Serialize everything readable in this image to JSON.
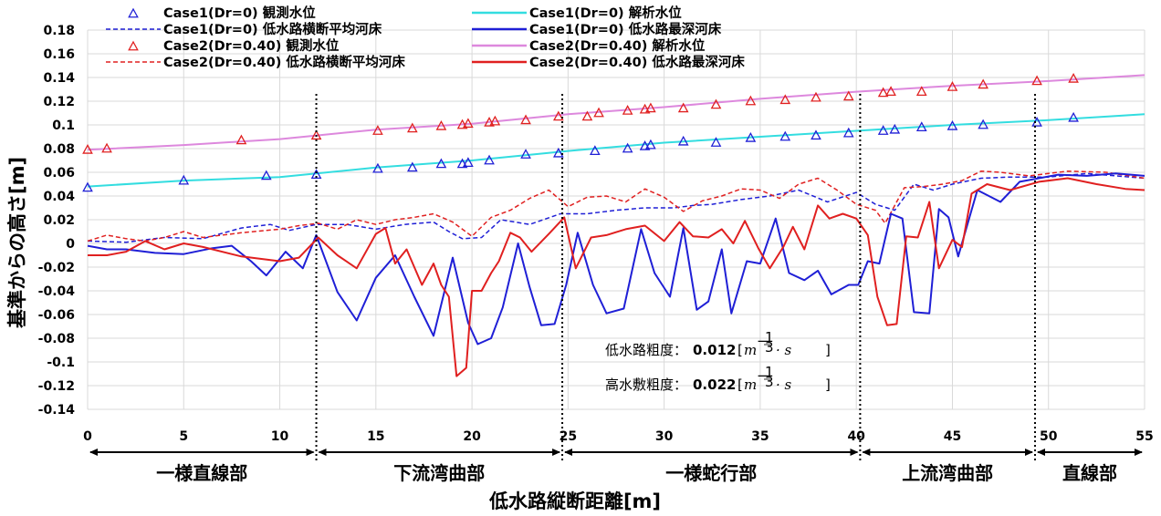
{
  "chart_data": {
    "type": "line",
    "title": "",
    "xlabel": "低水路縦断距離[m]",
    "ylabel": "基準からの高さ[m]",
    "xlim": [
      0,
      55
    ],
    "ylim": [
      -0.14,
      0.18
    ],
    "x_ticks": [
      0,
      5,
      10,
      15,
      20,
      25,
      30,
      35,
      40,
      45,
      50,
      55
    ],
    "y_ticks": [
      -0.14,
      -0.12,
      -0.1,
      -0.08,
      -0.06,
      -0.04,
      -0.02,
      0,
      0.02,
      0.04,
      0.06,
      0.08,
      0.1,
      0.12,
      0.14,
      0.16,
      0.18
    ],
    "grid": true,
    "legend_position": "top",
    "series": [
      {
        "name": "Case1(Dr=0) 観測水位",
        "style": "marker",
        "color": "#1f1fd6",
        "x": [
          0,
          5,
          9.3,
          11.9,
          15.1,
          16.9,
          18.4,
          19.5,
          19.8,
          20.9,
          22.8,
          24.5,
          26.4,
          28.1,
          29.0,
          29.3,
          31.0,
          32.7,
          34.5,
          36.3,
          37.9,
          39.6,
          41.4,
          42.0,
          43.4,
          45.0,
          46.6,
          49.4,
          51.3
        ],
        "y": [
          0.047,
          0.053,
          0.057,
          0.058,
          0.063,
          0.064,
          0.067,
          0.067,
          0.068,
          0.07,
          0.075,
          0.076,
          0.078,
          0.08,
          0.082,
          0.083,
          0.086,
          0.085,
          0.089,
          0.09,
          0.091,
          0.093,
          0.095,
          0.096,
          0.098,
          0.099,
          0.1,
          0.102,
          0.106
        ]
      },
      {
        "name": "Case1(Dr=0) 解析水位",
        "style": "solid",
        "color": "#33dde0",
        "x": [
          0,
          5,
          10,
          15,
          20,
          25,
          30,
          35,
          40,
          45,
          50,
          55
        ],
        "y": [
          0.048,
          0.053,
          0.056,
          0.064,
          0.07,
          0.078,
          0.085,
          0.09,
          0.095,
          0.1,
          0.104,
          0.109
        ]
      },
      {
        "name": "Case1(Dr=0) 低水路横断平均河床",
        "style": "dashed",
        "color": "#1f1fd6",
        "x": [
          0,
          2,
          4,
          6,
          8,
          9.5,
          10.5,
          11.9,
          13.5,
          15,
          16.5,
          18,
          18.8,
          19.5,
          20.5,
          21.5,
          23,
          24.6,
          26,
          27.5,
          29,
          30.5,
          31.5,
          32.5,
          34,
          35.5,
          37,
          38.5,
          40,
          41,
          42,
          43,
          44,
          45,
          46.5,
          48,
          50,
          52,
          55
        ],
        "y": [
          0.002,
          0.001,
          0.005,
          0.004,
          0.013,
          0.016,
          0.011,
          0.016,
          0.016,
          0.012,
          0.016,
          0.018,
          0.01,
          0.004,
          0.005,
          0.02,
          0.016,
          0.025,
          0.025,
          0.028,
          0.03,
          0.03,
          0.032,
          0.033,
          0.037,
          0.04,
          0.045,
          0.035,
          0.043,
          0.033,
          0.028,
          0.05,
          0.045,
          0.05,
          0.055,
          0.056,
          0.056,
          0.059,
          0.055
        ]
      },
      {
        "name": "Case1(Dr=0) 低水路最深河床",
        "style": "solid",
        "color": "#1f1fd6",
        "x": [
          0,
          1,
          2,
          3.5,
          5,
          6.5,
          7.5,
          8.5,
          9.3,
          10.3,
          11.2,
          11.9,
          13,
          14,
          15,
          16,
          17,
          18,
          19,
          19.8,
          20.3,
          21,
          21.6,
          22.4,
          23,
          23.6,
          24.3,
          24.9,
          25.5,
          26.3,
          27,
          27.9,
          28.8,
          29.5,
          30.3,
          31,
          31.7,
          32.3,
          33,
          33.5,
          34.3,
          35,
          35.8,
          36.5,
          37.3,
          38,
          38.7,
          39.6,
          40.1,
          40.6,
          41.2,
          41.8,
          42.4,
          43,
          43.8,
          44.3,
          44.8,
          45.3,
          46.3,
          47.5,
          48.5,
          49.5,
          50.5,
          52,
          53.5,
          55
        ],
        "y": [
          -0.002,
          -0.005,
          -0.005,
          -0.008,
          -0.009,
          -0.004,
          -0.002,
          -0.015,
          -0.027,
          -0.007,
          -0.021,
          0.007,
          -0.041,
          -0.065,
          -0.029,
          -0.01,
          -0.045,
          -0.078,
          -0.012,
          -0.067,
          -0.085,
          -0.08,
          -0.054,
          0.0,
          -0.037,
          -0.069,
          -0.068,
          -0.035,
          0.009,
          -0.035,
          -0.059,
          -0.055,
          0.012,
          -0.025,
          -0.045,
          0.013,
          -0.056,
          -0.049,
          -0.005,
          -0.059,
          -0.015,
          -0.017,
          0.021,
          -0.025,
          -0.031,
          -0.023,
          -0.043,
          -0.035,
          -0.035,
          -0.015,
          -0.017,
          0.025,
          0.021,
          -0.058,
          -0.059,
          0.029,
          0.022,
          -0.011,
          0.045,
          0.035,
          0.052,
          0.055,
          0.058,
          0.057,
          0.059,
          0.057
        ]
      },
      {
        "name": "Case2(Dr=0.40) 観測水位",
        "style": "marker",
        "color": "#e02020",
        "x": [
          0,
          1,
          8,
          11.9,
          15.1,
          16.9,
          18.4,
          19.5,
          19.8,
          20.9,
          21.2,
          22.8,
          24.5,
          26.0,
          26.6,
          28.1,
          29.0,
          29.3,
          31.0,
          32.7,
          34.5,
          36.3,
          37.9,
          39.6,
          41.4,
          41.8,
          43.4,
          45.0,
          46.6,
          49.4,
          51.3
        ],
        "y": [
          0.079,
          0.08,
          0.087,
          0.091,
          0.095,
          0.097,
          0.099,
          0.1,
          0.101,
          0.102,
          0.103,
          0.104,
          0.107,
          0.107,
          0.11,
          0.112,
          0.113,
          0.114,
          0.114,
          0.117,
          0.12,
          0.121,
          0.123,
          0.124,
          0.127,
          0.128,
          0.128,
          0.132,
          0.134,
          0.137,
          0.139
        ]
      },
      {
        "name": "Case2(Dr=0.40) 解析水位",
        "style": "solid",
        "color": "#dd88dd",
        "x": [
          0,
          5,
          10,
          15,
          20,
          25,
          30,
          35,
          40,
          45,
          50,
          55
        ],
        "y": [
          0.079,
          0.083,
          0.088,
          0.096,
          0.101,
          0.109,
          0.115,
          0.122,
          0.128,
          0.133,
          0.137,
          0.142
        ]
      },
      {
        "name": "Case2(Dr=0.40) 低水路横断平均河床",
        "style": "dashed",
        "color": "#e02020",
        "x": [
          0,
          1,
          2,
          3,
          4,
          5,
          6,
          8,
          10,
          11,
          12,
          13,
          14,
          15,
          16,
          17,
          18,
          19,
          20,
          21,
          22,
          23,
          24,
          25,
          26,
          27,
          28,
          29,
          30,
          31,
          32,
          33,
          34,
          35,
          36,
          37,
          38,
          39,
          40,
          41,
          41.5,
          42.5,
          43.5,
          44.5,
          45.5,
          46.5,
          47.5,
          49,
          51,
          53,
          55
        ],
        "y": [
          0.002,
          0.007,
          0.004,
          0.002,
          0.005,
          0.01,
          0.005,
          0.009,
          0.012,
          0.015,
          0.017,
          0.012,
          0.02,
          0.016,
          0.02,
          0.022,
          0.025,
          0.018,
          0.006,
          0.022,
          0.028,
          0.038,
          0.045,
          0.031,
          0.039,
          0.04,
          0.035,
          0.046,
          0.039,
          0.027,
          0.036,
          0.04,
          0.046,
          0.045,
          0.038,
          0.05,
          0.055,
          0.045,
          0.033,
          0.028,
          0.017,
          0.047,
          0.048,
          0.05,
          0.053,
          0.061,
          0.06,
          0.057,
          0.061,
          0.06,
          0.055
        ]
      },
      {
        "name": "Case2(Dr=0.40) 低水路最深河床",
        "style": "solid",
        "color": "#e02020",
        "x": [
          0,
          1,
          2,
          3,
          4,
          5,
          6,
          8,
          10,
          11,
          12,
          13,
          14,
          15,
          15.5,
          16,
          16.6,
          17.4,
          18,
          18.4,
          18.8,
          19.2,
          19.7,
          20.0,
          20.5,
          21,
          21.4,
          22,
          22.5,
          23.1,
          24,
          24.8,
          25.4,
          26.2,
          27,
          28,
          29,
          30,
          30.8,
          31.5,
          32.3,
          33,
          33.6,
          34.2,
          34.9,
          35.5,
          36.2,
          36.7,
          37.3,
          38,
          38.6,
          39.3,
          40,
          40.6,
          41.1,
          41.6,
          42.1,
          42.6,
          43.2,
          43.8,
          44.3,
          45,
          45.5,
          46,
          46.8,
          48,
          49.5,
          51,
          52.5,
          54,
          55
        ],
        "y": [
          -0.01,
          -0.01,
          -0.007,
          0.002,
          -0.005,
          0.0,
          -0.003,
          -0.011,
          -0.015,
          -0.012,
          0.005,
          -0.01,
          -0.021,
          0.008,
          0.013,
          -0.017,
          -0.005,
          -0.035,
          -0.017,
          -0.035,
          -0.045,
          -0.112,
          -0.105,
          -0.04,
          -0.04,
          -0.025,
          -0.015,
          0.009,
          0.005,
          -0.007,
          0.008,
          0.022,
          -0.021,
          0.005,
          0.007,
          0.012,
          0.015,
          0.002,
          0.018,
          0.006,
          0.005,
          0.012,
          0.0,
          0.019,
          -0.004,
          -0.021,
          -0.003,
          0.014,
          -0.005,
          0.032,
          0.021,
          0.025,
          0.021,
          0.007,
          -0.045,
          -0.069,
          -0.068,
          0.006,
          0.005,
          0.035,
          -0.021,
          0.003,
          -0.003,
          0.042,
          0.05,
          0.045,
          0.052,
          0.055,
          0.05,
          0.046,
          0.045
        ]
      }
    ],
    "section_labels": [
      {
        "label": "一様直線部",
        "from": 0,
        "to": 11.9
      },
      {
        "label": "下流湾曲部",
        "from": 11.9,
        "to": 24.7
      },
      {
        "label": "一様蛇行部",
        "from": 24.7,
        "to": 40.2
      },
      {
        "label": "上流湾曲部",
        "from": 40.2,
        "to": 49.3
      },
      {
        "label": "直線部",
        "from": 49.3,
        "to": 55
      }
    ],
    "section_boundaries": [
      11.9,
      24.7,
      40.2,
      49.3
    ],
    "annotations": {
      "low_channel_label": "低水路粗度：",
      "low_channel_value": "0.012",
      "high_channel_label": "高水敷粗度：",
      "high_channel_value": "0.022",
      "unit_base": "m",
      "unit_exp_sign": "−",
      "unit_exp_num": "1",
      "unit_exp_den": "3",
      "unit_tail": "· s"
    }
  }
}
